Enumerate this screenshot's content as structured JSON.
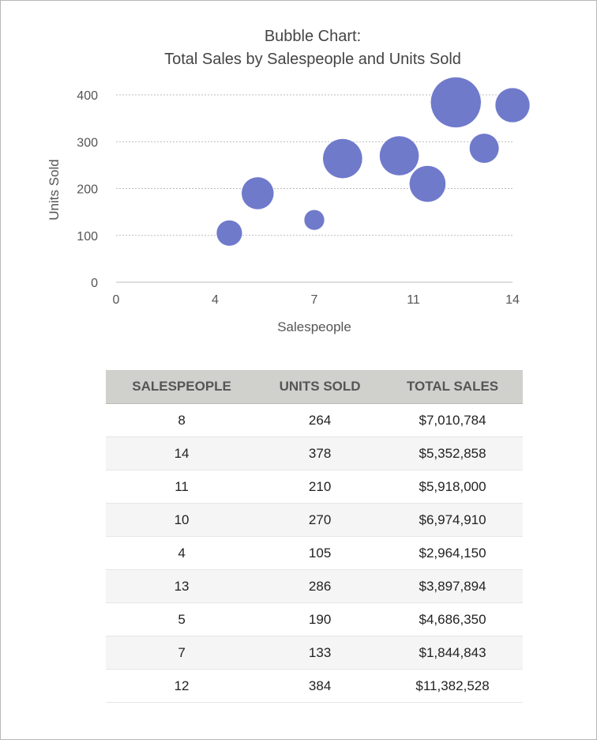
{
  "chart_data": {
    "type": "bubble",
    "title": [
      "Bubble Chart:",
      "Total Sales by Salespeople and Units Sold"
    ],
    "xlabel": "Salespeople",
    "ylabel": "Units Sold",
    "xlim": [
      0,
      14
    ],
    "ylim": [
      0,
      400
    ],
    "x_ticks": [
      0,
      3.5,
      7,
      10.5,
      14
    ],
    "x_tick_labels": [
      "0",
      "4",
      "7",
      "11",
      "14"
    ],
    "y_ticks": [
      0,
      100,
      200,
      300,
      400
    ],
    "y_tick_labels": [
      "0",
      "100",
      "200",
      "300",
      "400"
    ],
    "grid": "horizontal dotted",
    "bubble_color": "#6f7acb",
    "points": [
      {
        "x": 8,
        "y": 264,
        "size": 7010784
      },
      {
        "x": 14,
        "y": 378,
        "size": 5352858
      },
      {
        "x": 11,
        "y": 210,
        "size": 5918000
      },
      {
        "x": 10,
        "y": 270,
        "size": 6974910
      },
      {
        "x": 4,
        "y": 105,
        "size": 2964150
      },
      {
        "x": 13,
        "y": 286,
        "size": 3897894
      },
      {
        "x": 5,
        "y": 190,
        "size": 4686350
      },
      {
        "x": 7,
        "y": 133,
        "size": 1844843
      },
      {
        "x": 12,
        "y": 384,
        "size": 11382528
      }
    ]
  },
  "table": {
    "headers": [
      "SALESPEOPLE",
      "UNITS SOLD",
      "TOTAL SALES"
    ],
    "rows": [
      [
        "8",
        "264",
        "$7,010,784"
      ],
      [
        "14",
        "378",
        "$5,352,858"
      ],
      [
        "11",
        "210",
        "$5,918,000"
      ],
      [
        "10",
        "270",
        "$6,974,910"
      ],
      [
        "4",
        "105",
        "$2,964,150"
      ],
      [
        "13",
        "286",
        "$3,897,894"
      ],
      [
        "5",
        "190",
        "$4,686,350"
      ],
      [
        "7",
        "133",
        "$1,844,843"
      ],
      [
        "12",
        "384",
        "$11,382,528"
      ]
    ]
  }
}
